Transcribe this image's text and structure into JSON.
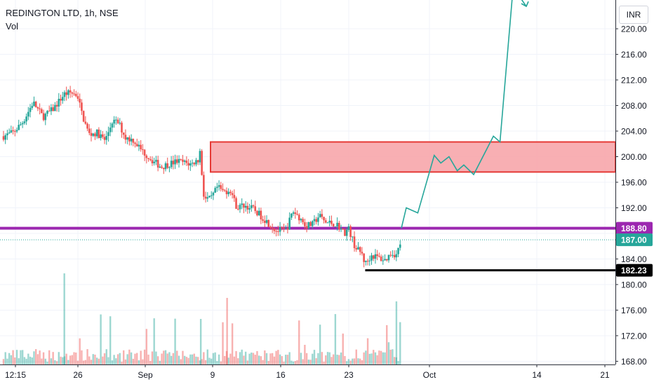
{
  "legend": {
    "symbol": "REDINGTON LTD, 1h, NSE",
    "volume_label": "Vol"
  },
  "currency_button": "INR",
  "colors": {
    "up": "#26a69a",
    "down": "#ef5350",
    "resistance_zone_fill": "#f7a6ab",
    "resistance_zone_border": "#e53935",
    "support_line": "#9c27b0",
    "low_line": "#000000",
    "projection": "#26a69a",
    "grid": "#f0f3fa",
    "axis_text": "#131722"
  },
  "chart_data": {
    "type": "candlestick",
    "y_axis": {
      "range": [
        167.5,
        224.5
      ],
      "ticks": [
        "220.00",
        "216.00",
        "212.00",
        "208.00",
        "204.00",
        "200.00",
        "196.00",
        "192.00",
        "188.00",
        "184.00",
        "180.00",
        "176.00",
        "172.00",
        "168.00"
      ]
    },
    "x_axis": {
      "ticks": [
        "12:15",
        "26",
        "Sep",
        "9",
        "16",
        "23",
        "Oct",
        "14",
        "21"
      ]
    },
    "price_labels": [
      {
        "value": 188.8,
        "text": "188.80",
        "color": "#9c27b0"
      },
      {
        "value": 187.0,
        "text": "187.00",
        "color": "#26a69a"
      },
      {
        "value": 182.23,
        "text": "182.23",
        "color": "#000000"
      }
    ],
    "last_price": 187.0,
    "support_level": 188.8,
    "recent_low": 182.23,
    "resistance_zone": [
      197.6,
      202.3
    ],
    "price_path": [
      [
        0,
        203.2
      ],
      [
        0.03,
        203.8
      ],
      [
        0.06,
        205.5
      ],
      [
        0.09,
        208.5
      ],
      [
        0.12,
        206.2
      ],
      [
        0.15,
        207.4
      ],
      [
        0.185,
        209.8
      ],
      [
        0.205,
        210.0
      ],
      [
        0.225,
        209.6
      ],
      [
        0.24,
        206.4
      ],
      [
        0.26,
        203.5
      ],
      [
        0.285,
        203.7
      ],
      [
        0.31,
        202.5
      ],
      [
        0.33,
        205.5
      ],
      [
        0.35,
        205.3
      ],
      [
        0.37,
        203.0
      ],
      [
        0.395,
        202.6
      ],
      [
        0.42,
        201.0
      ],
      [
        0.45,
        199.5
      ],
      [
        0.48,
        198.4
      ],
      [
        0.5,
        198.8
      ],
      [
        0.53,
        199.3
      ],
      [
        0.57,
        198.8
      ],
      [
        0.595,
        199.6
      ],
      [
        0.6,
        202.0
      ],
      [
        0.603,
        197.5
      ],
      [
        0.61,
        193.5
      ],
      [
        0.63,
        193.3
      ],
      [
        0.65,
        195.2
      ],
      [
        0.67,
        194.5
      ],
      [
        0.69,
        194.8
      ],
      [
        0.71,
        192.0
      ],
      [
        0.73,
        192.4
      ],
      [
        0.76,
        191.8
      ],
      [
        0.79,
        190.4
      ],
      [
        0.81,
        189.4
      ],
      [
        0.83,
        188.4
      ],
      [
        0.86,
        188.5
      ],
      [
        0.88,
        191.5
      ],
      [
        0.9,
        190.5
      ],
      [
        0.92,
        189.2
      ],
      [
        0.94,
        189.4
      ],
      [
        0.96,
        190.8
      ],
      [
        0.98,
        189.7
      ],
      [
        1.0,
        189.6
      ],
      [
        1.02,
        189.2
      ],
      [
        1.035,
        188.0
      ],
      [
        1.05,
        188.7
      ],
      [
        1.07,
        185.8
      ],
      [
        1.09,
        184.8
      ],
      [
        1.1,
        183.2
      ],
      [
        1.12,
        184.6
      ],
      [
        1.14,
        184.2
      ],
      [
        1.16,
        183.8
      ],
      [
        1.18,
        185.0
      ],
      [
        1.195,
        184.6
      ],
      [
        1.21,
        187.0
      ]
    ],
    "projection_path": [
      [
        1.21,
        188.8
      ],
      [
        1.225,
        192.0
      ],
      [
        1.26,
        191.2
      ],
      [
        1.31,
        200.2
      ],
      [
        1.33,
        199.0
      ],
      [
        1.355,
        200.0
      ],
      [
        1.38,
        197.8
      ],
      [
        1.4,
        198.7
      ],
      [
        1.43,
        197.2
      ],
      [
        1.49,
        203.2
      ],
      [
        1.51,
        202.3
      ],
      [
        1.55,
        226.5
      ],
      [
        1.57,
        225.0
      ],
      [
        1.59,
        223.5
      ]
    ]
  }
}
